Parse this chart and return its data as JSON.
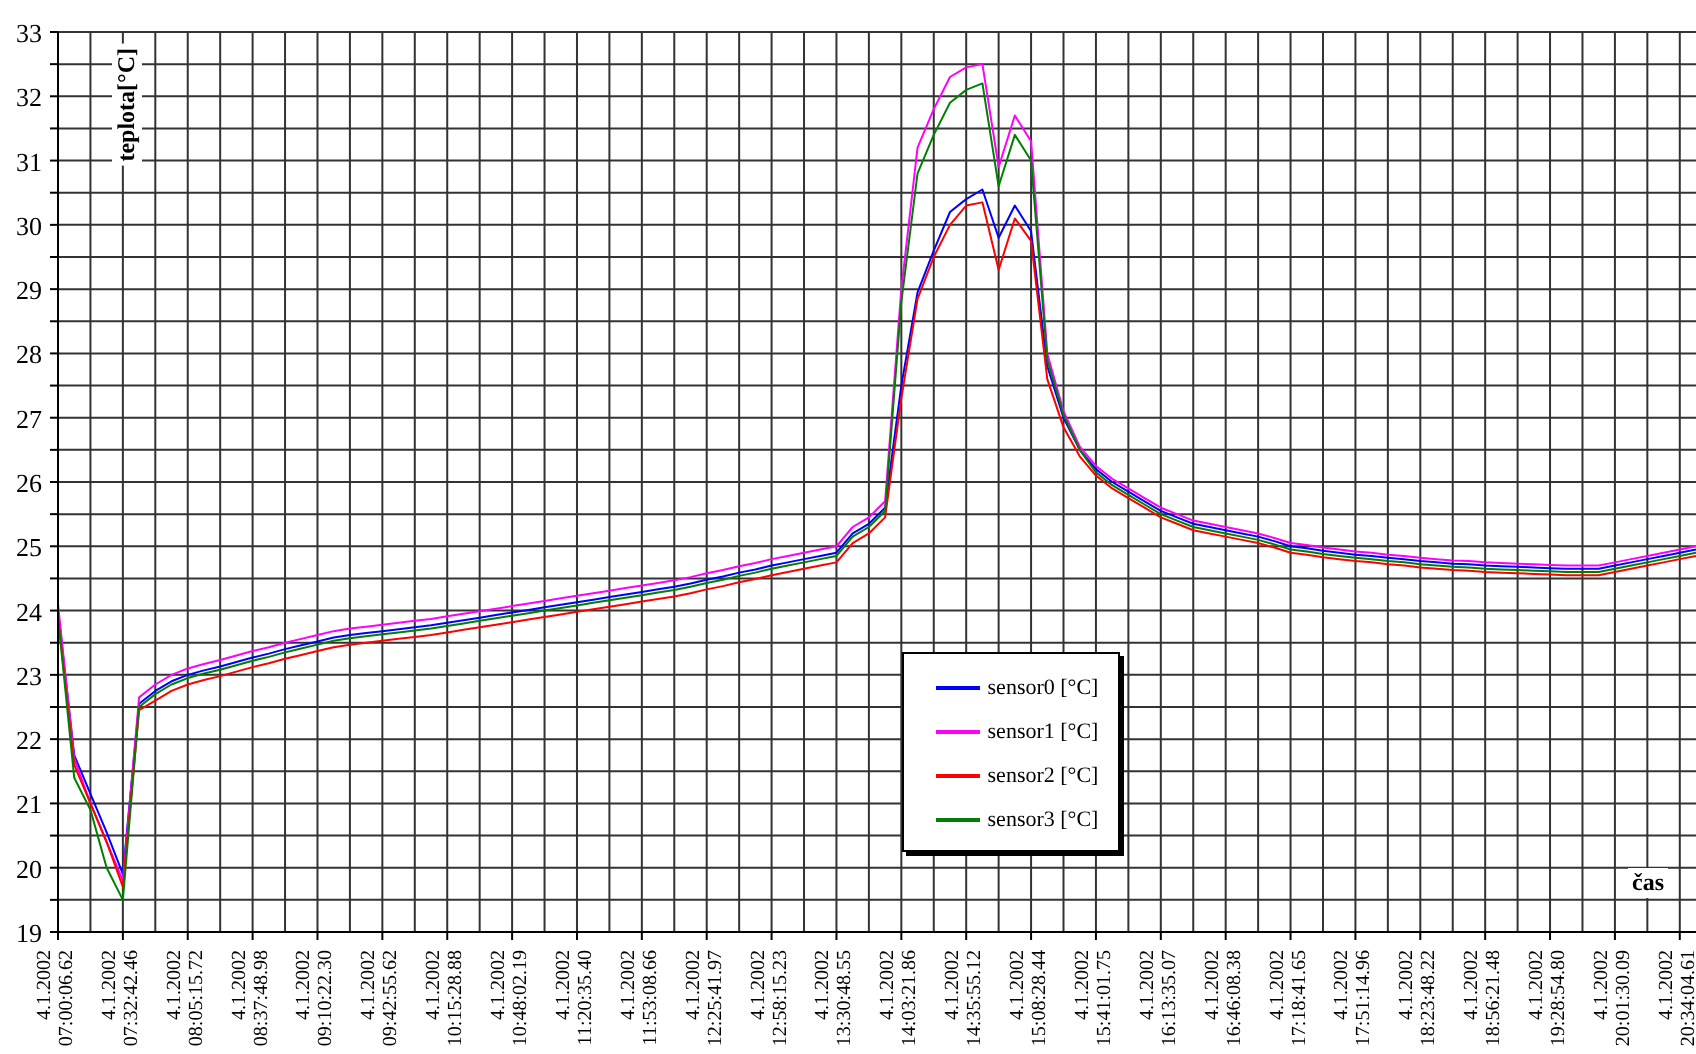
{
  "chart_data": {
    "type": "line",
    "ylabel": "teplota[°C]",
    "xlabel": "čas",
    "categories": [
      "4.1.2002 07:00:06.62",
      null,
      null,
      null,
      "4.1.2002 07:32:42.46",
      null,
      null,
      null,
      "4.1.2002 08:05:15.72",
      null,
      null,
      null,
      "4.1.2002 08:37:48.98",
      null,
      null,
      null,
      "4.1.2002 09:10:22.30",
      null,
      null,
      null,
      "4.1.2002 09:42:55.62",
      null,
      null,
      null,
      "4.1.2002 10:15:28.88",
      null,
      null,
      null,
      "4.1.2002 10:48:02.19",
      null,
      null,
      null,
      "4.1.2002 11:20:35.40",
      null,
      null,
      null,
      "4.1.2002 11:53:08.66",
      null,
      null,
      null,
      "4.1.2002 12:25:41.97",
      null,
      null,
      null,
      "4.1.2002 12:58:15.23",
      null,
      null,
      null,
      "4.1.2002 13:30:48.55",
      null,
      null,
      null,
      "4.1.2002 14:03:21.86",
      null,
      null,
      null,
      "4.1.2002 14:35:55.12",
      null,
      null,
      null,
      "4.1.2002 15:08:28.44",
      null,
      null,
      null,
      "4.1.2002 15:41:01.75",
      null,
      null,
      null,
      "4.1.2002 16:13:35.07",
      null,
      null,
      null,
      "4.1.2002 16:46:08.38",
      null,
      null,
      null,
      "4.1.2002 17:18:41.65",
      null,
      null,
      null,
      "4.1.2002 17:51:14.96",
      null,
      null,
      null,
      "4.1.2002 18:23:48.22",
      null,
      null,
      null,
      "4.1.2002 18:56:21.48",
      null,
      null,
      null,
      "4.1.2002 19:28:54.80",
      null,
      null,
      null,
      "4.1.2002 20:01:30.09",
      null,
      null,
      null,
      "4.1.2002 20:34:04.61",
      null
    ],
    "series": [
      {
        "name": "sensor0 [°C]",
        "color": "#0000ff",
        "values": [
          24.0,
          21.75,
          21.15,
          20.55,
          19.9,
          22.55,
          22.75,
          22.9,
          23.0,
          23.07,
          23.13,
          23.2,
          23.27,
          23.33,
          23.4,
          23.46,
          23.52,
          23.58,
          23.62,
          23.65,
          23.68,
          23.71,
          23.74,
          23.77,
          23.81,
          23.85,
          23.89,
          23.93,
          23.97,
          24.01,
          24.05,
          24.09,
          24.13,
          24.17,
          24.21,
          24.25,
          24.29,
          24.33,
          24.37,
          24.42,
          24.48,
          24.53,
          24.59,
          24.64,
          24.7,
          24.75,
          24.8,
          24.85,
          24.9,
          25.2,
          25.35,
          25.6,
          27.5,
          28.95,
          29.6,
          30.2,
          30.4,
          30.55,
          29.8,
          30.3,
          29.9,
          27.8,
          27.0,
          26.5,
          26.2,
          26.0,
          25.85,
          25.7,
          25.55,
          25.45,
          25.35,
          25.3,
          25.25,
          25.2,
          25.15,
          25.08,
          25.0,
          24.97,
          24.93,
          24.9,
          24.87,
          24.85,
          24.82,
          24.8,
          24.77,
          24.75,
          24.73,
          24.72,
          24.7,
          24.69,
          24.68,
          24.67,
          24.66,
          24.65,
          24.65,
          24.65,
          24.7,
          24.75,
          24.8,
          24.85,
          24.9,
          24.95
        ]
      },
      {
        "name": "sensor1 [°C]",
        "color": "#ff00ff",
        "values": [
          24.1,
          21.7,
          21.0,
          20.4,
          19.8,
          22.65,
          22.85,
          23.0,
          23.1,
          23.17,
          23.23,
          23.3,
          23.37,
          23.43,
          23.5,
          23.56,
          23.62,
          23.68,
          23.72,
          23.75,
          23.78,
          23.81,
          23.84,
          23.87,
          23.91,
          23.95,
          23.99,
          24.03,
          24.07,
          24.11,
          24.15,
          24.19,
          24.23,
          24.27,
          24.31,
          24.35,
          24.39,
          24.43,
          24.47,
          24.52,
          24.58,
          24.63,
          24.69,
          24.74,
          24.8,
          24.85,
          24.9,
          24.95,
          25.0,
          25.3,
          25.45,
          25.7,
          29.0,
          31.2,
          31.8,
          32.3,
          32.45,
          32.5,
          30.9,
          31.7,
          31.3,
          28.0,
          27.1,
          26.55,
          26.25,
          26.05,
          25.9,
          25.75,
          25.6,
          25.5,
          25.4,
          25.35,
          25.3,
          25.25,
          25.2,
          25.13,
          25.05,
          25.02,
          24.98,
          24.95,
          24.92,
          24.9,
          24.87,
          24.85,
          24.82,
          24.8,
          24.78,
          24.77,
          24.75,
          24.74,
          24.73,
          24.72,
          24.71,
          24.7,
          24.7,
          24.7,
          24.75,
          24.8,
          24.85,
          24.9,
          24.95,
          25.0
        ]
      },
      {
        "name": "sensor2 [°C]",
        "color": "#ff0000",
        "values": [
          23.9,
          21.6,
          21.0,
          20.4,
          19.7,
          22.45,
          22.6,
          22.75,
          22.85,
          22.92,
          22.98,
          23.05,
          23.12,
          23.18,
          23.25,
          23.31,
          23.37,
          23.43,
          23.47,
          23.5,
          23.53,
          23.56,
          23.59,
          23.62,
          23.66,
          23.7,
          23.74,
          23.78,
          23.82,
          23.86,
          23.9,
          23.94,
          23.98,
          24.02,
          24.06,
          24.1,
          24.14,
          24.18,
          24.22,
          24.27,
          24.33,
          24.38,
          24.44,
          24.49,
          24.55,
          24.6,
          24.65,
          24.7,
          24.75,
          25.05,
          25.2,
          25.45,
          27.3,
          28.85,
          29.5,
          30.0,
          30.3,
          30.35,
          29.3,
          30.1,
          29.75,
          27.6,
          26.85,
          26.4,
          26.1,
          25.9,
          25.75,
          25.6,
          25.45,
          25.35,
          25.25,
          25.2,
          25.15,
          25.1,
          25.05,
          24.98,
          24.9,
          24.87,
          24.83,
          24.8,
          24.77,
          24.75,
          24.72,
          24.7,
          24.67,
          24.65,
          24.63,
          24.62,
          24.6,
          24.59,
          24.58,
          24.57,
          24.56,
          24.55,
          24.55,
          24.55,
          24.6,
          24.65,
          24.7,
          24.75,
          24.8,
          24.85
        ]
      },
      {
        "name": "sensor3 [°C]",
        "color": "#008000",
        "values": [
          23.9,
          21.4,
          20.9,
          20.0,
          19.5,
          22.5,
          22.7,
          22.85,
          22.95,
          23.02,
          23.08,
          23.15,
          23.22,
          23.28,
          23.35,
          23.41,
          23.47,
          23.53,
          23.57,
          23.6,
          23.63,
          23.66,
          23.69,
          23.72,
          23.76,
          23.8,
          23.84,
          23.88,
          23.92,
          23.96,
          24.0,
          24.04,
          24.08,
          24.12,
          24.16,
          24.2,
          24.24,
          24.28,
          24.32,
          24.37,
          24.43,
          24.48,
          24.54,
          24.59,
          24.65,
          24.7,
          24.75,
          24.8,
          24.85,
          25.15,
          25.3,
          25.55,
          28.8,
          30.8,
          31.4,
          31.9,
          32.1,
          32.2,
          30.6,
          31.4,
          31.0,
          27.9,
          27.05,
          26.5,
          26.15,
          25.95,
          25.8,
          25.65,
          25.5,
          25.4,
          25.3,
          25.25,
          25.2,
          25.15,
          25.1,
          25.03,
          24.95,
          24.92,
          24.88,
          24.85,
          24.82,
          24.8,
          24.77,
          24.75,
          24.72,
          24.7,
          24.68,
          24.67,
          24.65,
          24.64,
          24.63,
          24.62,
          24.61,
          24.6,
          24.6,
          24.6,
          24.65,
          24.7,
          24.75,
          24.8,
          24.85,
          24.9
        ]
      }
    ],
    "ylim": [
      19,
      33
    ],
    "yticks": [
      19,
      {
        "value": 19.5,
        "label": null
      },
      20,
      {
        "value": 20.5,
        "label": null
      },
      21,
      {
        "value": 21.5,
        "label": null
      },
      22,
      {
        "value": 22.5,
        "label": null
      },
      23,
      {
        "value": 23.5,
        "label": null
      },
      24,
      {
        "value": 24.5,
        "label": null
      },
      25,
      {
        "value": 25.5,
        "label": null
      },
      26,
      {
        "value": 26.5,
        "label": null
      },
      27,
      {
        "value": 27.5,
        "label": null
      },
      28,
      {
        "value": 28.5,
        "label": null
      },
      29,
      {
        "value": 29.5,
        "label": null
      },
      30,
      {
        "value": 30.5,
        "label": null
      },
      31,
      {
        "value": 31.5,
        "label": null
      },
      32,
      {
        "value": 32.5,
        "label": null
      },
      33
    ],
    "grid": true,
    "legend": "bottom"
  }
}
